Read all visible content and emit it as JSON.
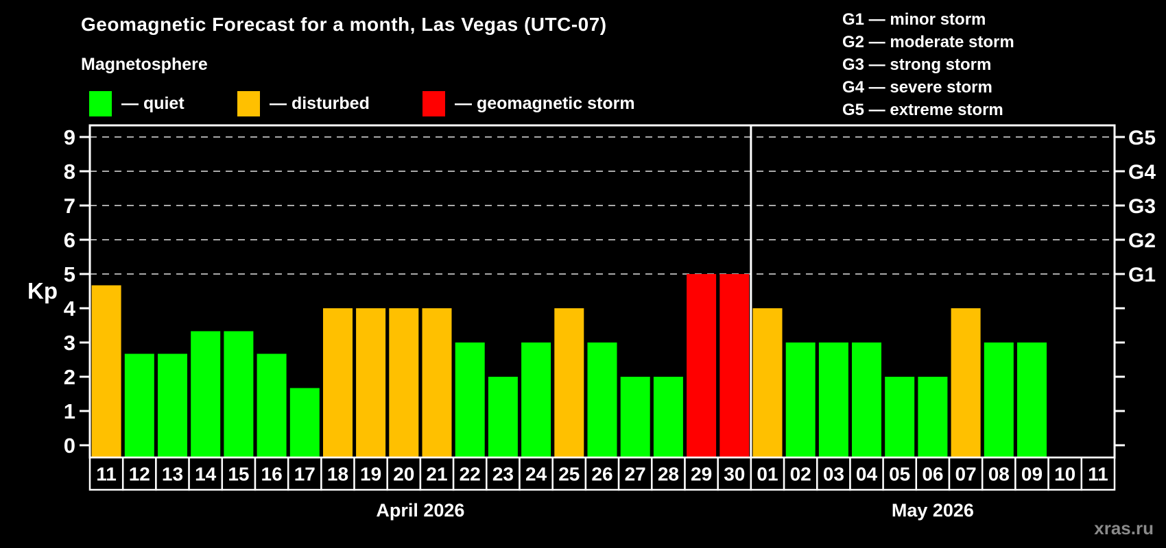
{
  "header": {
    "title": "Geomagnetic Forecast for a month, Las Vegas (UTC-07)",
    "subtitle": "Magnetosphere",
    "legend": [
      {
        "status": "quiet",
        "label": "— quiet"
      },
      {
        "status": "disturbed",
        "label": "— disturbed"
      },
      {
        "status": "storm",
        "label": "— geomagnetic storm"
      }
    ],
    "g_scale_legend": [
      "G1 — minor storm",
      "G2 — moderate storm",
      "G3 — strong storm",
      "G4 — severe storm",
      "G5 — extreme storm"
    ]
  },
  "chart_data": {
    "type": "bar",
    "ylabel": "Kp",
    "ylim": [
      -0.36,
      9.35
    ],
    "yticks": [
      0,
      1,
      2,
      3,
      4,
      5,
      6,
      7,
      8,
      9
    ],
    "gridlines_at": [
      5,
      6,
      7,
      8,
      9
    ],
    "right_tick_labels": {
      "5": "G1",
      "6": "G2",
      "7": "G3",
      "8": "G4",
      "9": "G5"
    },
    "grid": "dashed",
    "legend_position": "top-left",
    "months": [
      {
        "label": "April 2026",
        "days": [
          {
            "day": "11",
            "kp": 4.67,
            "status": "disturbed"
          },
          {
            "day": "12",
            "kp": 2.67,
            "status": "quiet"
          },
          {
            "day": "13",
            "kp": 2.67,
            "status": "quiet"
          },
          {
            "day": "14",
            "kp": 3.33,
            "status": "quiet"
          },
          {
            "day": "15",
            "kp": 3.33,
            "status": "quiet"
          },
          {
            "day": "16",
            "kp": 2.67,
            "status": "quiet"
          },
          {
            "day": "17",
            "kp": 1.67,
            "status": "quiet"
          },
          {
            "day": "18",
            "kp": 4,
            "status": "disturbed"
          },
          {
            "day": "19",
            "kp": 4,
            "status": "disturbed"
          },
          {
            "day": "20",
            "kp": 4,
            "status": "disturbed"
          },
          {
            "day": "21",
            "kp": 4,
            "status": "disturbed"
          },
          {
            "day": "22",
            "kp": 3,
            "status": "quiet"
          },
          {
            "day": "23",
            "kp": 2,
            "status": "quiet"
          },
          {
            "day": "24",
            "kp": 3,
            "status": "quiet"
          },
          {
            "day": "25",
            "kp": 4,
            "status": "disturbed"
          },
          {
            "day": "26",
            "kp": 3,
            "status": "quiet"
          },
          {
            "day": "27",
            "kp": 2,
            "status": "quiet"
          },
          {
            "day": "28",
            "kp": 2,
            "status": "quiet"
          },
          {
            "day": "29",
            "kp": 5,
            "status": "storm"
          },
          {
            "day": "30",
            "kp": 5,
            "status": "storm"
          }
        ]
      },
      {
        "label": "May 2026",
        "days": [
          {
            "day": "01",
            "kp": 4,
            "status": "disturbed"
          },
          {
            "day": "02",
            "kp": 3,
            "status": "quiet"
          },
          {
            "day": "03",
            "kp": 3,
            "status": "quiet"
          },
          {
            "day": "04",
            "kp": 3,
            "status": "quiet"
          },
          {
            "day": "05",
            "kp": 2,
            "status": "quiet"
          },
          {
            "day": "06",
            "kp": 2,
            "status": "quiet"
          },
          {
            "day": "07",
            "kp": 4,
            "status": "disturbed"
          },
          {
            "day": "08",
            "kp": 3,
            "status": "quiet"
          },
          {
            "day": "09",
            "kp": 3,
            "status": "quiet"
          },
          {
            "day": "10",
            "kp": null,
            "status": "none"
          },
          {
            "day": "11",
            "kp": null,
            "status": "none"
          }
        ]
      }
    ]
  },
  "colors": {
    "quiet": "#00ff00",
    "disturbed": "#ffc000",
    "storm": "#ff0000",
    "grid": "#aaaaaa",
    "frame": "#ffffff",
    "background": "#000000"
  },
  "watermark": "xras.ru"
}
